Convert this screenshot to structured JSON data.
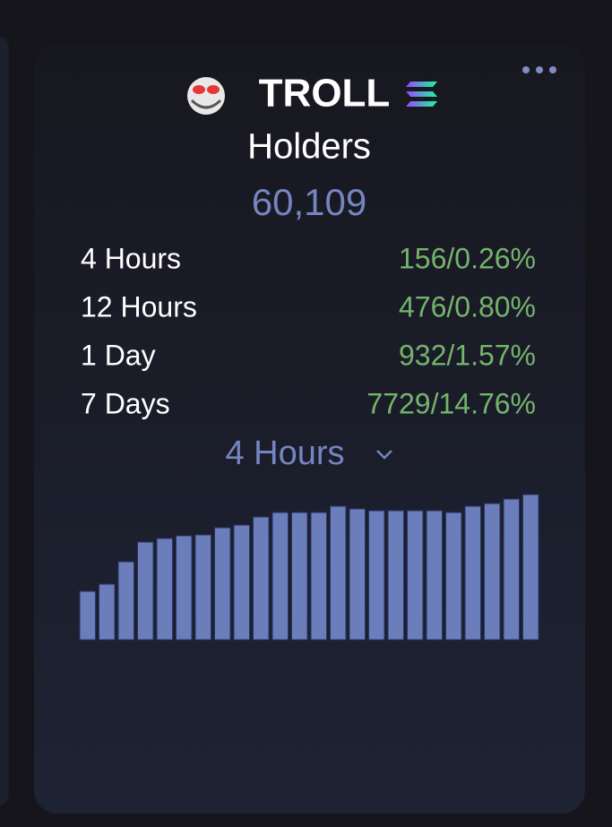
{
  "token": {
    "name": "TROLL"
  },
  "title": "Holders",
  "total": "60,109",
  "stats": [
    {
      "label": "4 Hours",
      "value": "156/0.26%"
    },
    {
      "label": "12 Hours",
      "value": "476/0.80%"
    },
    {
      "label": "1 Day",
      "value": "932/1.57%"
    },
    {
      "label": "7 Days",
      "value": "7729/14.76%"
    }
  ],
  "selector": "4 Hours",
  "chart_data": {
    "type": "bar",
    "color": "#6b7dba",
    "values": [
      54,
      62,
      87,
      109,
      113,
      116,
      117,
      125,
      128,
      137,
      142,
      142,
      142,
      149,
      146,
      144,
      144,
      144,
      144,
      142,
      149,
      152,
      157,
      162
    ]
  }
}
